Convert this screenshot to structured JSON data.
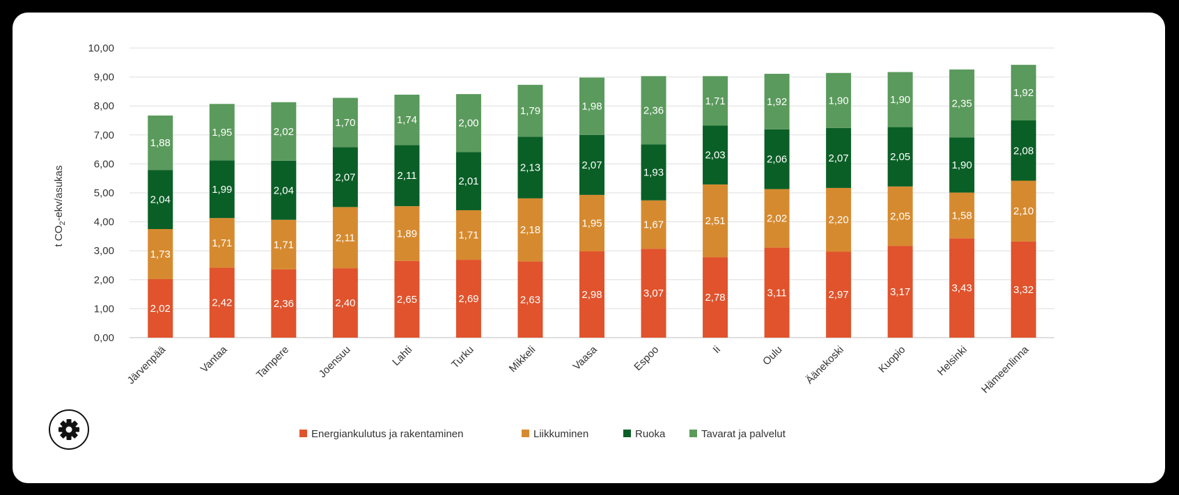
{
  "chart_data": {
    "type": "bar",
    "stacked": true,
    "title": "",
    "xlabel": "",
    "ylabel": "t CO",
    "ylabel_sub": "2",
    "ylabel_rest": "-ekv/asukas",
    "ylim": [
      0,
      10
    ],
    "yticks": [
      "0,00",
      "1,00",
      "2,00",
      "3,00",
      "4,00",
      "5,00",
      "6,00",
      "7,00",
      "8,00",
      "9,00",
      "10,00"
    ],
    "grid": true,
    "legend_position": "bottom",
    "categories": [
      "Järvenpää",
      "Vantaa",
      "Tampere",
      "Joensuu",
      "Lahti",
      "Turku",
      "Mikkeli",
      "Vaasa",
      "Espoo",
      "Ii",
      "Oulu",
      "Äänekoski",
      "Kuopio",
      "Helsinki",
      "Hämeenlinna"
    ],
    "series": [
      {
        "name": "Energiankulutus ja rakentaminen",
        "color": "#e0532c",
        "values": [
          2.02,
          2.42,
          2.36,
          2.4,
          2.65,
          2.69,
          2.63,
          2.98,
          3.07,
          2.78,
          3.11,
          2.97,
          3.17,
          3.43,
          3.32
        ],
        "labels": [
          "2,02",
          "2,42",
          "2,36",
          "2,40",
          "2,65",
          "2,69",
          "2,63",
          "2,98",
          "3,07",
          "2,78",
          "3,11",
          "2,97",
          "3,17",
          "3,43",
          "3,32"
        ]
      },
      {
        "name": "Liikkuminen",
        "color": "#d68a2f",
        "values": [
          1.73,
          1.71,
          1.71,
          2.11,
          1.89,
          1.71,
          2.18,
          1.95,
          1.67,
          2.51,
          2.02,
          2.2,
          2.05,
          1.58,
          2.1
        ],
        "labels": [
          "1,73",
          "1,71",
          "1,71",
          "2,11",
          "1,89",
          "1,71",
          "2,18",
          "1,95",
          "1,67",
          "2,51",
          "2,02",
          "2,20",
          "2,05",
          "1,58",
          "2,10"
        ]
      },
      {
        "name": "Ruoka",
        "color": "#0a5f26",
        "values": [
          2.04,
          1.99,
          2.04,
          2.07,
          2.11,
          2.01,
          2.13,
          2.07,
          1.93,
          2.03,
          2.06,
          2.07,
          2.05,
          1.9,
          2.08
        ],
        "labels": [
          "2,04",
          "1,99",
          "2,04",
          "2,07",
          "2,11",
          "2,01",
          "2,13",
          "2,07",
          "1,93",
          "2,03",
          "2,06",
          "2,07",
          "2,05",
          "1,90",
          "2,08"
        ]
      },
      {
        "name": "Tavarat ja palvelut",
        "color": "#5a9a5c",
        "values": [
          1.88,
          1.95,
          2.02,
          1.7,
          1.74,
          2.0,
          1.79,
          1.98,
          2.36,
          1.71,
          1.92,
          1.9,
          1.9,
          2.35,
          1.92
        ],
        "labels": [
          "1,88",
          "1,95",
          "2,02",
          "1,70",
          "1,74",
          "2,00",
          "1,79",
          "1,98",
          "2,36",
          "1,71",
          "1,92",
          "1,90",
          "1,90",
          "2,35",
          "1,92"
        ]
      }
    ]
  },
  "controls": {
    "settings_icon": "gear-icon"
  }
}
